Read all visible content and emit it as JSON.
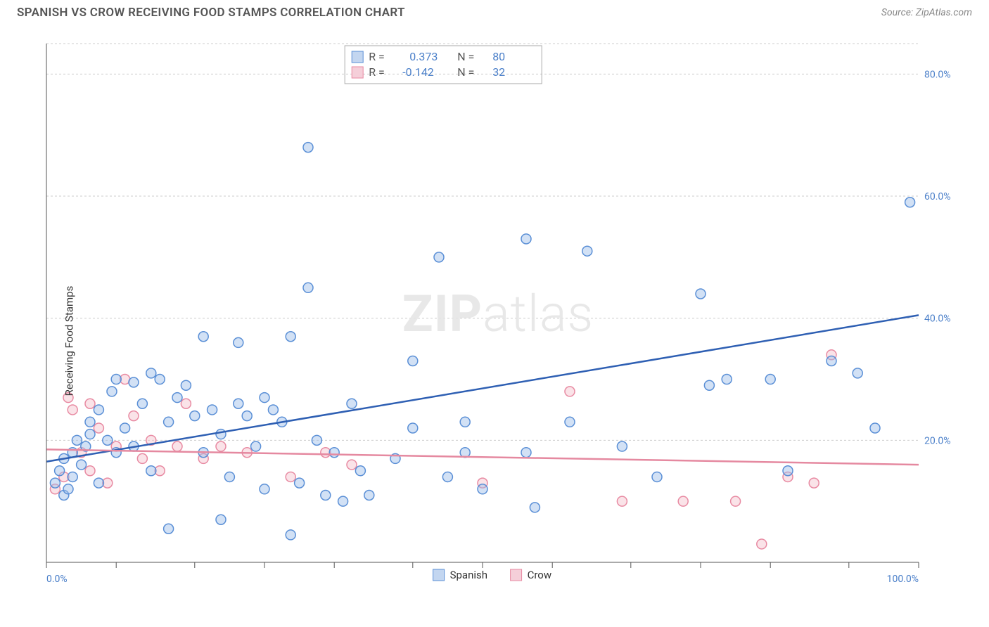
{
  "title": "SPANISH VS CROW RECEIVING FOOD STAMPS CORRELATION CHART",
  "source": "Source: ZipAtlas.com",
  "ylabel": "Receiving Food Stamps",
  "watermark": "ZIPatlas",
  "chart": {
    "type": "scatter",
    "xlim": [
      0,
      100
    ],
    "ylim": [
      0,
      85
    ],
    "y_ticks": [
      20,
      40,
      60,
      80
    ],
    "y_tick_labels": [
      "20.0%",
      "40.0%",
      "60.0%",
      "80.0%"
    ],
    "x_first_label": "0.0%",
    "x_last_label": "100.0%",
    "x_tick_positions": [
      0,
      8,
      17,
      25,
      33,
      42,
      50,
      58,
      67,
      75,
      83,
      92,
      100
    ],
    "background_color": "#ffffff",
    "grid_color": "#cccccc",
    "marker_radius": 7,
    "series": {
      "spanish": {
        "label": "Spanish",
        "color_fill": "#9cbce8",
        "color_stroke": "#5a8fd6",
        "R": "0.373",
        "N": "80",
        "trend": {
          "x0": 0,
          "y0": 16.5,
          "x1": 100,
          "y1": 40.5,
          "color": "#2e5fb3"
        },
        "points": [
          [
            1,
            13
          ],
          [
            1.5,
            15
          ],
          [
            2,
            11
          ],
          [
            2.5,
            12
          ],
          [
            2,
            17
          ],
          [
            3,
            14
          ],
          [
            3,
            18
          ],
          [
            3.5,
            20
          ],
          [
            4,
            16
          ],
          [
            4.5,
            19
          ],
          [
            5,
            21
          ],
          [
            5,
            23
          ],
          [
            6,
            13
          ],
          [
            6,
            25
          ],
          [
            7,
            20
          ],
          [
            7.5,
            28
          ],
          [
            8,
            18
          ],
          [
            8,
            30
          ],
          [
            9,
            22
          ],
          [
            10,
            29.5
          ],
          [
            10,
            19
          ],
          [
            11,
            26
          ],
          [
            12,
            31
          ],
          [
            12,
            15
          ],
          [
            13,
            30
          ],
          [
            14,
            23
          ],
          [
            14,
            5.5
          ],
          [
            15,
            27
          ],
          [
            16,
            29
          ],
          [
            17,
            24
          ],
          [
            18,
            37
          ],
          [
            18,
            18
          ],
          [
            19,
            25
          ],
          [
            20,
            21
          ],
          [
            20,
            7
          ],
          [
            21,
            14
          ],
          [
            22,
            26
          ],
          [
            22,
            36
          ],
          [
            23,
            24
          ],
          [
            24,
            19
          ],
          [
            25,
            27
          ],
          [
            25,
            12
          ],
          [
            26,
            25
          ],
          [
            27,
            23
          ],
          [
            28,
            37
          ],
          [
            28,
            4.5
          ],
          [
            29,
            13
          ],
          [
            30,
            45
          ],
          [
            30,
            68
          ],
          [
            31,
            20
          ],
          [
            32,
            11
          ],
          [
            33,
            18
          ],
          [
            34,
            10
          ],
          [
            35,
            26
          ],
          [
            36,
            15
          ],
          [
            37,
            11
          ],
          [
            40,
            17
          ],
          [
            42,
            22
          ],
          [
            42,
            33
          ],
          [
            45,
            50
          ],
          [
            46,
            14
          ],
          [
            48,
            23
          ],
          [
            48,
            18
          ],
          [
            50,
            12
          ],
          [
            55,
            53
          ],
          [
            55,
            18
          ],
          [
            56,
            9
          ],
          [
            60,
            23
          ],
          [
            62,
            51
          ],
          [
            66,
            19
          ],
          [
            70,
            14
          ],
          [
            75,
            44
          ],
          [
            76,
            29
          ],
          [
            78,
            30
          ],
          [
            83,
            30
          ],
          [
            85,
            15
          ],
          [
            90,
            33
          ],
          [
            93,
            31
          ],
          [
            95,
            22
          ],
          [
            99,
            59
          ]
        ]
      },
      "crow": {
        "label": "Crow",
        "color_fill": "#f4c0cc",
        "color_stroke": "#e88aa2",
        "R": "-0.142",
        "N": "32",
        "trend": {
          "x0": 0,
          "y0": 18.5,
          "x1": 100,
          "y1": 16.0,
          "color": "#e589a0"
        },
        "points": [
          [
            1,
            12
          ],
          [
            2,
            14
          ],
          [
            2.5,
            27
          ],
          [
            3,
            25
          ],
          [
            4,
            18
          ],
          [
            5,
            15
          ],
          [
            5,
            26
          ],
          [
            6,
            22
          ],
          [
            7,
            13
          ],
          [
            8,
            19
          ],
          [
            9,
            30
          ],
          [
            10,
            24
          ],
          [
            11,
            17
          ],
          [
            12,
            20
          ],
          [
            13,
            15
          ],
          [
            15,
            19
          ],
          [
            16,
            26
          ],
          [
            18,
            17
          ],
          [
            20,
            19
          ],
          [
            23,
            18
          ],
          [
            28,
            14
          ],
          [
            32,
            18
          ],
          [
            35,
            16
          ],
          [
            50,
            13
          ],
          [
            60,
            28
          ],
          [
            66,
            10
          ],
          [
            73,
            10
          ],
          [
            79,
            10
          ],
          [
            82,
            3
          ],
          [
            85,
            14
          ],
          [
            88,
            13
          ],
          [
            90,
            34
          ]
        ]
      }
    }
  }
}
